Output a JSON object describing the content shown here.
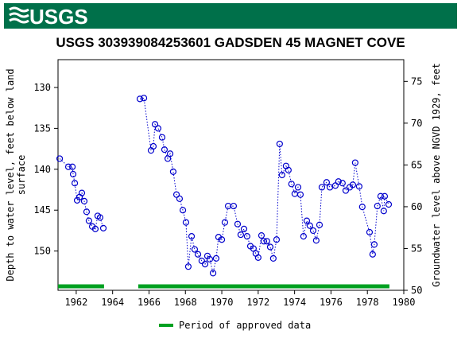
{
  "header": {
    "logo": "USGS"
  },
  "chart_data": {
    "type": "line",
    "title": "USGS 303939084253601 GADSDEN 45 MAGNET COVE",
    "y_label": [
      "Depth to water level, feet below land",
      "surface"
    ],
    "y2_label": "Groundwater level above NGVD 1929, feet",
    "xlim": [
      1961,
      1980
    ],
    "xticks": [
      1962,
      1964,
      1966,
      1968,
      1970,
      1972,
      1974,
      1976,
      1978,
      1980
    ],
    "ylim": [
      126.6,
      154.8
    ],
    "y_inverted": true,
    "yticks": [
      130,
      135,
      140,
      145,
      150
    ],
    "y2lim": [
      50,
      77.6
    ],
    "y2ticks": [
      50,
      55,
      60,
      65,
      70,
      75
    ],
    "series": [
      {
        "color": "#0000cc",
        "x": [
          1961.09,
          1961.57,
          1961.79,
          1961.83,
          1961.92,
          1962.05,
          1962.18,
          1962.31,
          1962.44,
          1962.57,
          1962.7,
          1962.88,
          1963.05,
          1963.18,
          1963.31,
          1963.49
        ],
        "values": [
          138.7,
          139.7,
          139.7,
          140.6,
          141.7,
          143.8,
          143.4,
          142.9,
          143.9,
          145.2,
          146.3,
          147.0,
          147.3,
          145.7,
          145.9,
          147.2
        ]
      },
      {
        "color": "#0000cc",
        "x": [
          1965.5,
          1965.72,
          1966.11,
          1966.24,
          1966.33,
          1966.5,
          1966.72,
          1966.85,
          1967.03,
          1967.16,
          1967.33,
          1967.51,
          1967.68,
          1967.86,
          1968.03,
          1968.16,
          1968.34,
          1968.51,
          1968.69,
          1968.9,
          1969.08,
          1969.21,
          1969.34,
          1969.52,
          1969.69,
          1969.82,
          1970.0,
          1970.17,
          1970.35,
          1970.65,
          1970.87,
          1971.04,
          1971.22,
          1971.39,
          1971.57,
          1971.74,
          1971.87,
          1972.0,
          1972.18,
          1972.31,
          1972.48,
          1972.66,
          1972.83,
          1973.01,
          1973.18,
          1973.31,
          1973.53,
          1973.66,
          1973.83,
          1974.01,
          1974.19,
          1974.32,
          1974.49,
          1974.67,
          1974.84,
          1975.02,
          1975.19,
          1975.37,
          1975.5,
          1975.76,
          1975.94,
          1976.24,
          1976.41,
          1976.63,
          1976.81,
          1977.03,
          1977.2,
          1977.33,
          1977.55,
          1977.72,
          1978.12,
          1978.29,
          1978.38,
          1978.55,
          1978.73,
          1978.9,
          1978.95,
          1979.17
        ],
        "values": [
          131.4,
          131.3,
          137.7,
          137.2,
          134.5,
          135.0,
          136.1,
          137.6,
          138.7,
          138.1,
          140.3,
          143.1,
          143.6,
          145.0,
          146.5,
          151.9,
          148.2,
          149.8,
          150.4,
          151.2,
          151.6,
          150.6,
          151.0,
          152.7,
          150.9,
          148.3,
          148.6,
          146.5,
          144.5,
          144.5,
          146.7,
          148.0,
          147.3,
          148.2,
          149.4,
          149.7,
          150.3,
          150.8,
          148.1,
          148.8,
          148.8,
          149.5,
          150.9,
          148.6,
          136.9,
          140.7,
          139.6,
          140.1,
          141.8,
          143.0,
          142.2,
          143.1,
          148.2,
          146.3,
          146.9,
          147.5,
          148.7,
          146.8,
          142.2,
          141.6,
          142.2,
          142.0,
          141.5,
          141.7,
          142.6,
          142.2,
          141.9,
          139.2,
          142.1,
          144.6,
          147.7,
          150.4,
          149.2,
          144.5,
          143.3,
          145.1,
          143.3,
          144.3
        ]
      }
    ],
    "approved_periods": {
      "name": "Period of approved data",
      "color": "#00a020",
      "spans": [
        [
          1961.0,
          1963.53
        ],
        [
          1965.41,
          1979.21
        ]
      ]
    }
  }
}
